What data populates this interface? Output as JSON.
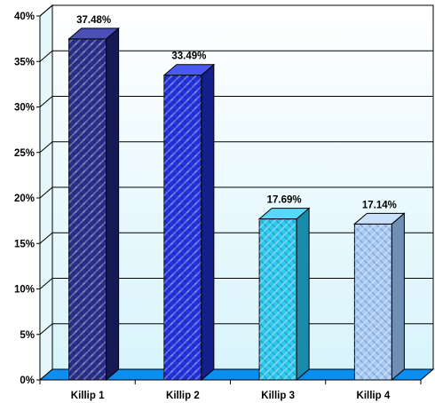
{
  "chart_data": {
    "type": "bar",
    "categories": [
      "Killip 1",
      "Killip 2",
      "Killip 3",
      "Killip 4"
    ],
    "values": [
      37.48,
      33.49,
      17.69,
      17.14
    ],
    "data_labels": [
      "37.48%",
      "33.49%",
      "17.69%",
      "17.14%"
    ],
    "ylim": [
      0,
      40
    ],
    "yticks": [
      "0%",
      "5%",
      "10%",
      "15%",
      "20%",
      "25%",
      "30%",
      "35%",
      "40%"
    ],
    "grid": true,
    "legend": "none",
    "style": "3d-column",
    "colors": {
      "bars": [
        "#2a2f8c",
        "#2233dd",
        "#2ec8f0",
        "#a8ccf6"
      ],
      "bars_side": [
        "#151a55",
        "#14208a",
        "#1a8cab",
        "#6f8fb5"
      ],
      "bars_top": [
        "#4a50b8",
        "#4a5af0",
        "#58d8f8",
        "#c8e0fb"
      ],
      "plot_bg_top": "#ffffff",
      "plot_bg_bottom": "#d8f4fb",
      "floor": "#0a8ff0"
    }
  }
}
